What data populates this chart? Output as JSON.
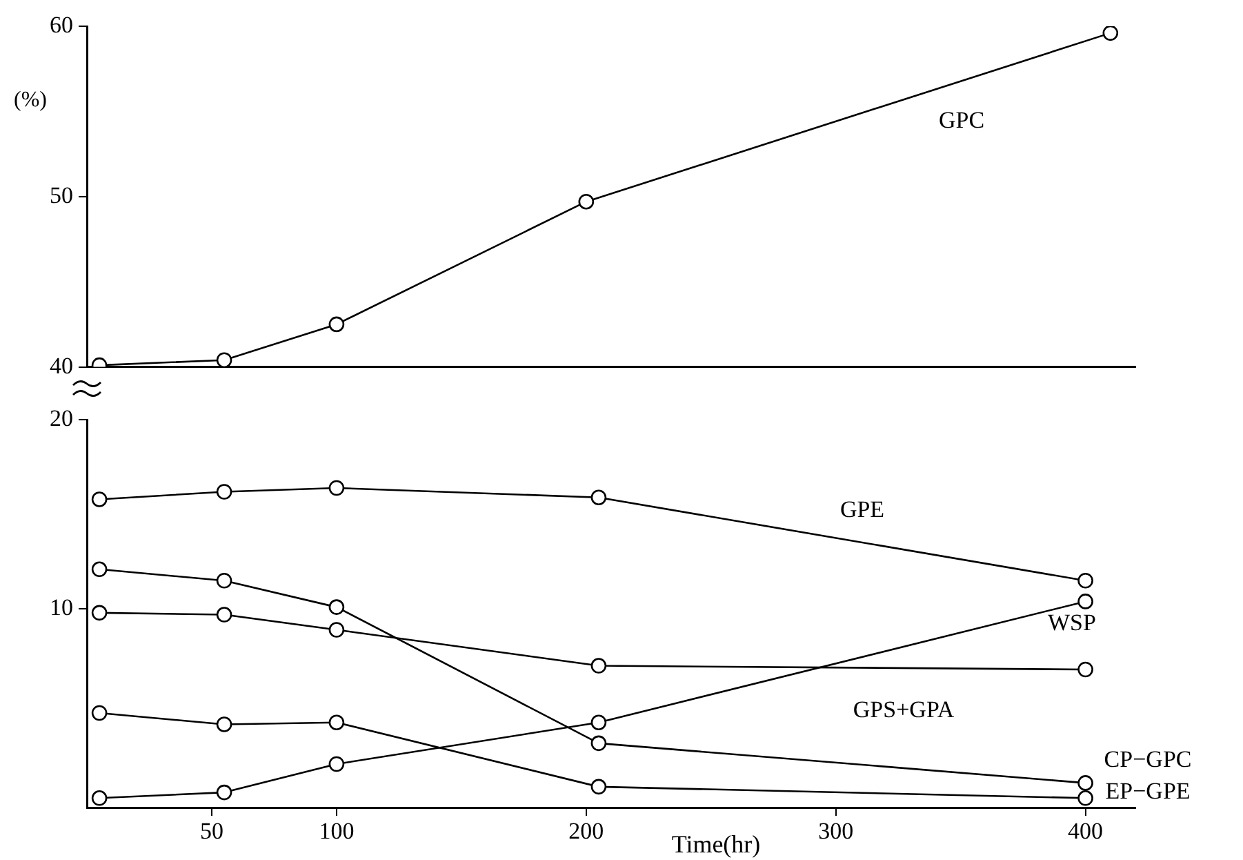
{
  "chart_data": [
    {
      "type": "line",
      "ylabel": "(%)",
      "xlim": [
        0,
        420
      ],
      "xticks": [
        50,
        100,
        200,
        300,
        400
      ],
      "ylim": [
        40,
        60
      ],
      "yticks": [
        40,
        50,
        60
      ],
      "tick_labels": "y",
      "grid": false,
      "legend": false,
      "marker": "circle",
      "line_style": "solid",
      "series": [
        {
          "name": "GPC",
          "color": "#000000",
          "x": [
            5,
            55,
            100,
            200,
            410
          ],
          "values": [
            40.1,
            40.4,
            42.5,
            49.7,
            59.6
          ]
        }
      ]
    },
    {
      "type": "line",
      "xlabel": "Time(hr)",
      "xlim": [
        0,
        420
      ],
      "xticks": [
        50,
        100,
        200,
        300,
        400
      ],
      "ylim": [
        -0.5,
        20
      ],
      "yticks": [
        10,
        20
      ],
      "grid": false,
      "legend": false,
      "marker": "circle",
      "line_style": "solid",
      "series": [
        {
          "name": "GPE",
          "color": "#000000",
          "x": [
            5,
            55,
            100,
            205,
            400
          ],
          "values": [
            15.8,
            16.2,
            16.4,
            15.9,
            11.5
          ]
        },
        {
          "name": "WSP",
          "color": "#000000",
          "x": [
            5,
            55,
            100,
            205,
            400
          ],
          "values": [
            0.0,
            0.3,
            1.8,
            4.0,
            10.4
          ]
        },
        {
          "name": "GPS+GPA",
          "color": "#000000",
          "x": [
            5,
            55,
            100,
            205,
            400
          ],
          "values": [
            9.8,
            9.7,
            8.9,
            7.0,
            6.8
          ]
        },
        {
          "name": "CP−GPC",
          "color": "#000000",
          "x": [
            5,
            55,
            100,
            205,
            400
          ],
          "values": [
            12.1,
            11.5,
            10.1,
            2.9,
            0.8
          ]
        },
        {
          "name": "EP−GPE",
          "color": "#000000",
          "x": [
            5,
            55,
            100,
            205,
            400
          ],
          "values": [
            4.5,
            3.9,
            4.0,
            0.6,
            0.0
          ]
        }
      ]
    }
  ]
}
